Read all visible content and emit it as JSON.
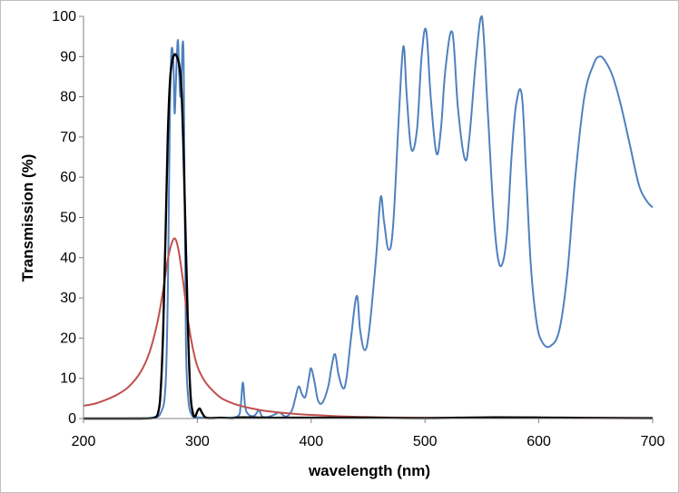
{
  "chart_data": {
    "type": "line",
    "title": "",
    "xlabel": "wavelength (nm)",
    "ylabel": "Transmission (%)",
    "xlim": [
      200,
      700
    ],
    "ylim": [
      0,
      100
    ],
    "x_ticks": [
      200,
      300,
      400,
      500,
      600,
      700
    ],
    "y_ticks": [
      0,
      10,
      20,
      30,
      40,
      50,
      60,
      70,
      80,
      90,
      100
    ],
    "grid": false,
    "legend": "none",
    "series": [
      {
        "color": "#4f81bd",
        "x": [
          200,
          240,
          260,
          268,
          272,
          274,
          275,
          276,
          277,
          278,
          279,
          280,
          281,
          282,
          283,
          284,
          285,
          286,
          287,
          288,
          289,
          290,
          292,
          295,
          300,
          320,
          335,
          338,
          340,
          342,
          345,
          350,
          354,
          357,
          362,
          368,
          372,
          378,
          383,
          386,
          389,
          392,
          395,
          398,
          400,
          403,
          406,
          410,
          415,
          418,
          421,
          424,
          428,
          431,
          435,
          440,
          443,
          447,
          451,
          457,
          461,
          464,
          468,
          472,
          477,
          481,
          484,
          488,
          493,
          497,
          501,
          505,
          510,
          514,
          518,
          524,
          529,
          535,
          539,
          545,
          550,
          555,
          560,
          564,
          568,
          572,
          576,
          580,
          585,
          589,
          593,
          598,
          603,
          610,
          618,
          625,
          632,
          640,
          648,
          653,
          658,
          665,
          672,
          680,
          688,
          695,
          700
        ],
        "y": [
          0,
          0,
          0.2,
          1.5,
          8,
          30,
          55,
          78,
          90,
          92,
          88,
          76,
          82,
          90,
          94,
          86,
          80,
          84,
          93,
          88,
          50,
          18,
          5,
          1,
          0.3,
          0.2,
          0.5,
          3,
          9,
          3,
          1,
          0.7,
          2,
          0.5,
          0.4,
          1,
          1.5,
          0.5,
          2,
          5,
          8,
          6,
          5.5,
          10,
          12.5,
          9,
          4.5,
          4,
          8,
          13,
          16,
          11,
          7.5,
          10,
          20,
          30.5,
          22,
          17,
          22,
          40,
          55,
          49,
          42,
          48,
          75,
          92.5,
          80,
          67,
          72,
          90,
          96.5,
          80,
          66,
          72,
          87,
          96,
          77,
          64.5,
          70,
          90,
          100,
          77,
          52,
          40,
          38.5,
          46,
          65,
          78,
          80.5,
          60,
          38,
          24,
          19,
          18,
          22,
          36,
          60,
          80,
          88,
          90,
          89,
          85,
          78,
          68,
          58,
          54,
          52.5
        ]
      },
      {
        "color": "#c0504d",
        "x": [
          200,
          210,
          220,
          230,
          240,
          250,
          258,
          265,
          270,
          274,
          278,
          281,
          284,
          288,
          292,
          296,
          300,
          305,
          310,
          320,
          330,
          340,
          350,
          360,
          380,
          400,
          430,
          460,
          500,
          560,
          620,
          700
        ],
        "y": [
          3.2,
          3.7,
          4.7,
          6,
          8,
          11.5,
          16.5,
          24,
          32,
          39.5,
          44,
          44.5,
          41,
          33,
          24,
          17.5,
          13,
          10,
          8,
          5.3,
          3.9,
          3,
          2.4,
          1.9,
          1.3,
          0.9,
          0.5,
          0.3,
          0.2,
          0.15,
          0.1,
          0.05
        ]
      },
      {
        "color": "#000000",
        "x": [
          200,
          250,
          262,
          266,
          268,
          270,
          272,
          274,
          276,
          278,
          280,
          282,
          284,
          286,
          288,
          290,
          292,
          294,
          296,
          298,
          300,
          302,
          304,
          307,
          312,
          320,
          330,
          340,
          360,
          380,
          400,
          450,
          500,
          560,
          620,
          700
        ],
        "y": [
          0,
          0,
          0.2,
          2,
          8,
          22,
          45,
          70,
          84,
          89,
          90.5,
          90,
          88,
          82,
          65,
          42,
          20,
          6,
          1.5,
          0.5,
          1.8,
          2.5,
          1.5,
          0.3,
          0.1,
          0.2,
          0.1,
          0.3,
          0.2,
          0.2,
          0.2,
          0.2,
          0.1,
          0.3,
          0.2,
          0.1
        ]
      }
    ]
  }
}
